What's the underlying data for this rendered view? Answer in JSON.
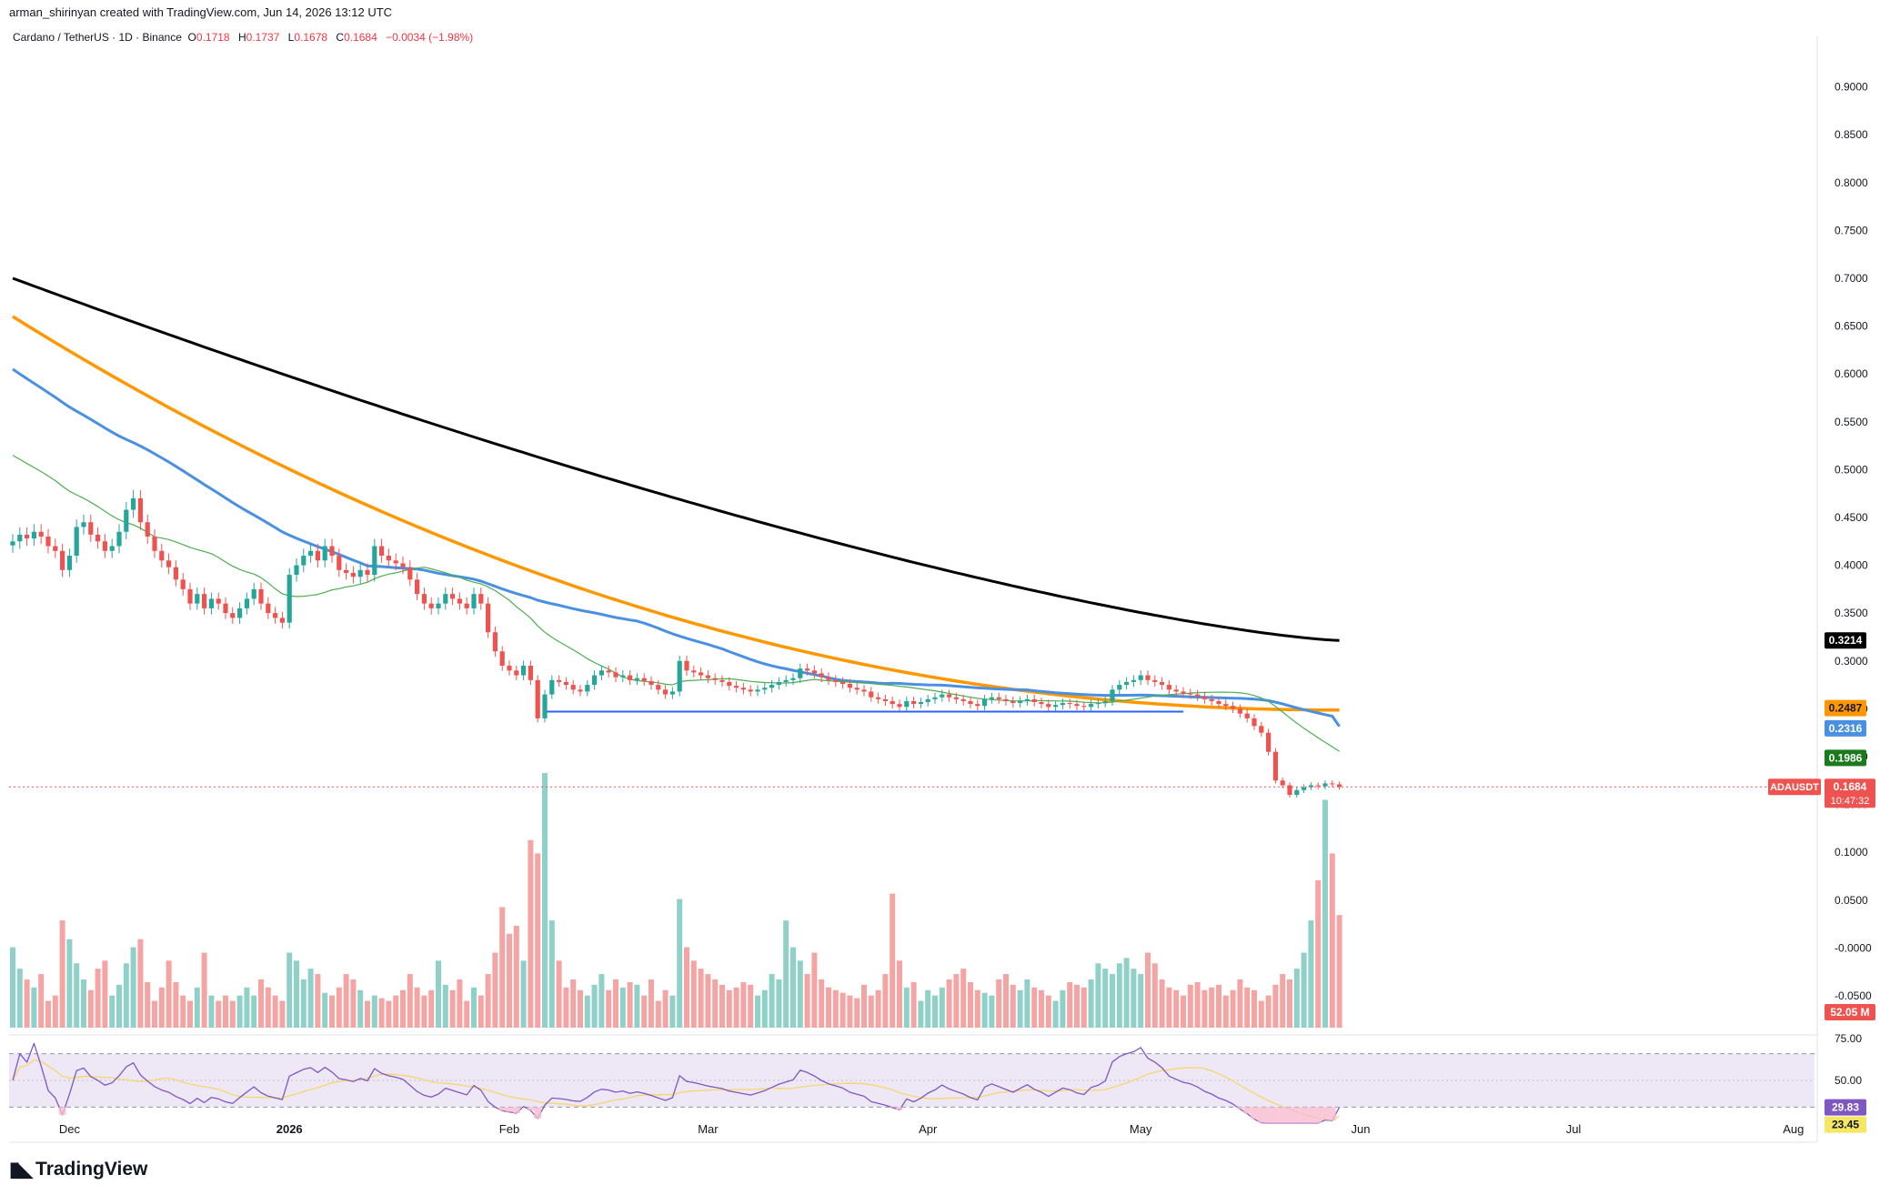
{
  "header": {
    "credit": "arman_shirinyan created with TradingView.com, Jun 14, 2026 13:12 UTC"
  },
  "legend": {
    "symbol_text": "Cardano / TetherUS · 1D · Binance",
    "o_label": "O",
    "o_value": "0.1718",
    "h_label": "H",
    "h_value": "0.1737",
    "l_label": "L",
    "l_value": "0.1678",
    "c_label": "C",
    "c_value": "0.1684",
    "change": "−0.0034 (−1.98%)"
  },
  "footer": {
    "logo_text": "TradingView"
  },
  "colors": {
    "up": "#26a69a",
    "down": "#ef5350",
    "vol_up": "#8fd1c8",
    "vol_down": "#f4a4a3",
    "ma200": "#000000",
    "ma100": "#ff9800",
    "ma50": "#4a90e2",
    "ma20": "#4caf50",
    "rsi_line": "#7e57c2",
    "rsi_ma": "#f5d76e",
    "rsi_band": "#ede7f6",
    "support_line": "#2962ff"
  },
  "chart_data": {
    "type": "candlestick",
    "symbol": "ADAUSDT",
    "date_range": [
      "2025-11-23",
      "2026-06-14"
    ],
    "y_axis_ticks": [
      "0.9000",
      "0.8500",
      "0.8000",
      "0.7500",
      "0.7000",
      "0.6500",
      "0.6000",
      "0.5500",
      "0.5000",
      "0.4500",
      "0.4000",
      "0.3500",
      "0.3000",
      "0.2500",
      "0.2000",
      "0.1500",
      "0.1000",
      "0.0500",
      "-0.0000",
      "-0.0500"
    ],
    "ylim": [
      -0.07,
      0.93
    ],
    "x_axis_ticks": [
      "Dec",
      "2026",
      "Feb",
      "Mar",
      "Apr",
      "May",
      "Jun",
      "Jul",
      "Aug"
    ],
    "x_tick_dates": [
      "2025-12-01",
      "2026-01-01",
      "2026-02-01",
      "2026-03-01",
      "2026-04-01",
      "2026-05-01",
      "2026-06-01",
      "2026-07-01",
      "2026-08-01"
    ],
    "closes": [
      0.425,
      0.432,
      0.428,
      0.435,
      0.43,
      0.42,
      0.415,
      0.395,
      0.41,
      0.44,
      0.445,
      0.432,
      0.425,
      0.415,
      0.42,
      0.435,
      0.458,
      0.47,
      0.445,
      0.43,
      0.415,
      0.405,
      0.398,
      0.385,
      0.375,
      0.36,
      0.37,
      0.355,
      0.365,
      0.36,
      0.35,
      0.345,
      0.355,
      0.365,
      0.375,
      0.36,
      0.35,
      0.345,
      0.34,
      0.39,
      0.4,
      0.41,
      0.415,
      0.405,
      0.42,
      0.41,
      0.395,
      0.392,
      0.388,
      0.395,
      0.39,
      0.42,
      0.41,
      0.405,
      0.402,
      0.398,
      0.385,
      0.37,
      0.36,
      0.355,
      0.36,
      0.37,
      0.365,
      0.36,
      0.355,
      0.37,
      0.36,
      0.33,
      0.31,
      0.295,
      0.29,
      0.285,
      0.295,
      0.28,
      0.24,
      0.265,
      0.28,
      0.278,
      0.275,
      0.27,
      0.268,
      0.275,
      0.285,
      0.29,
      0.288,
      0.283,
      0.285,
      0.28,
      0.282,
      0.279,
      0.275,
      0.27,
      0.265,
      0.268,
      0.3,
      0.29,
      0.288,
      0.285,
      0.282,
      0.28,
      0.278,
      0.274,
      0.272,
      0.27,
      0.268,
      0.27,
      0.272,
      0.275,
      0.278,
      0.28,
      0.282,
      0.292,
      0.29,
      0.287,
      0.283,
      0.28,
      0.278,
      0.276,
      0.272,
      0.27,
      0.268,
      0.262,
      0.26,
      0.258,
      0.255,
      0.252,
      0.258,
      0.255,
      0.257,
      0.26,
      0.262,
      0.265,
      0.262,
      0.26,
      0.258,
      0.255,
      0.253,
      0.26,
      0.262,
      0.26,
      0.258,
      0.256,
      0.258,
      0.26,
      0.257,
      0.255,
      0.252,
      0.254,
      0.256,
      0.255,
      0.253,
      0.252,
      0.255,
      0.256,
      0.258,
      0.27,
      0.275,
      0.278,
      0.28,
      0.285,
      0.28,
      0.278,
      0.275,
      0.27,
      0.268,
      0.266,
      0.265,
      0.263,
      0.26,
      0.258,
      0.255,
      0.253,
      0.25,
      0.245,
      0.24,
      0.232,
      0.225,
      0.205,
      0.175,
      0.17,
      0.16,
      0.165,
      0.168,
      0.17,
      0.169,
      0.172,
      0.171,
      0.1684
    ],
    "volume_scale_note": "relative",
    "volumes": [
      30,
      22,
      18,
      15,
      20,
      10,
      12,
      40,
      33,
      24,
      18,
      14,
      22,
      25,
      12,
      16,
      24,
      30,
      33,
      17,
      10,
      15,
      25,
      17,
      12,
      10,
      15,
      28,
      12,
      10,
      12,
      10,
      12,
      15,
      12,
      18,
      15,
      12,
      10,
      28,
      25,
      18,
      22,
      20,
      13,
      12,
      15,
      20,
      18,
      14,
      10,
      12,
      11,
      10,
      12,
      14,
      20,
      15,
      12,
      14,
      25,
      16,
      14,
      18,
      10,
      15,
      12,
      20,
      28,
      45,
      35,
      38,
      25,
      70,
      65,
      95,
      40,
      25,
      15,
      18,
      14,
      12,
      16,
      20,
      14,
      18,
      15,
      17,
      16,
      12,
      18,
      10,
      14,
      12,
      48,
      30,
      25,
      22,
      20,
      18,
      16,
      14,
      15,
      17,
      16,
      12,
      14,
      20,
      18,
      40,
      30,
      25,
      20,
      28,
      18,
      15,
      14,
      13,
      12,
      11,
      16,
      12,
      14,
      20,
      50,
      25,
      15,
      17,
      10,
      14,
      12,
      15,
      18,
      20,
      22,
      17,
      14,
      13,
      12,
      18,
      20,
      16,
      14,
      18,
      15,
      14,
      12,
      10,
      14,
      17,
      16,
      15,
      18,
      24,
      22,
      20,
      24,
      26,
      22,
      20,
      28,
      24,
      18,
      15,
      14,
      12,
      16,
      17,
      14,
      15,
      16,
      12,
      14,
      18,
      15,
      14,
      10,
      12,
      16,
      20,
      18,
      22,
      28,
      40,
      55,
      85,
      65,
      42,
      32,
      28,
      20,
      17,
      12,
      8
    ],
    "ma200_endpoints": {
      "label": "0.3214"
    },
    "ma100_endpoints": {
      "label": "0.2487"
    },
    "ma50_endpoints": {
      "label": "0.2316"
    },
    "ma20_endpoints": {
      "label": "0.1986"
    },
    "price_tag": {
      "symbol": "ADAUSDT",
      "value": "0.1684",
      "countdown": "10:47:32"
    },
    "volume_tag": "52.05 M",
    "support_level": 0.247,
    "rsi": {
      "ticks": [
        "75.00",
        "50.00"
      ],
      "value_label": "29.83",
      "ma_label": "23.45"
    }
  }
}
